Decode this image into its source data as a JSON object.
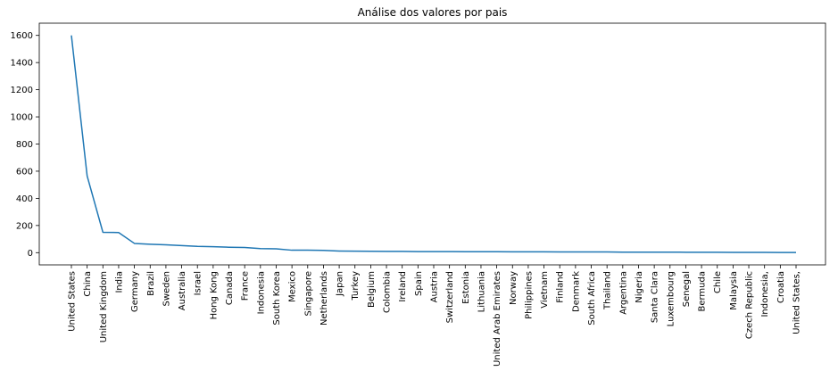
{
  "chart_data": {
    "type": "line",
    "title": "Análise dos valores por pais",
    "xlabel": "",
    "ylabel": "",
    "ylim": [
      -90,
      1690
    ],
    "yticks": [
      0,
      200,
      400,
      600,
      800,
      1000,
      1200,
      1400,
      1600
    ],
    "grid": false,
    "colors": {
      "line": "#1f77b4"
    },
    "categories": [
      "United States",
      "China",
      "United Kingdom",
      "India",
      "Germany",
      "Brazil",
      "Sweden",
      "Australia",
      "Israel",
      "Hong Kong",
      "Canada",
      "France",
      "Indonesia",
      "South Korea",
      "Mexico",
      "Singapore",
      "Netherlands",
      "Japan",
      "Turkey",
      "Belgium",
      "Colombia",
      "Ireland",
      "Spain",
      "Austria",
      "Switzerland",
      "Estonia",
      "Lithuania",
      "United Arab Emirates",
      "Norway",
      "Philippines",
      "Vietnam",
      "Finland",
      "Denmark",
      "South Africa",
      "Thailand",
      "Argentina",
      "Nigeria",
      "Santa Clara",
      "Luxembourg",
      "Senegal",
      "Bermuda",
      "Chile",
      "Malaysia",
      "Czech Republic",
      "Indonesia,",
      "Croatia",
      "United States,"
    ],
    "values": [
      1600,
      565,
      150,
      148,
      68,
      62,
      58,
      52,
      46,
      44,
      40,
      38,
      30,
      28,
      18,
      18,
      17,
      12,
      11,
      10,
      9,
      9,
      8,
      8,
      8,
      7,
      7,
      7,
      6,
      6,
      6,
      5,
      5,
      5,
      5,
      4,
      4,
      4,
      4,
      3,
      3,
      3,
      2,
      2,
      2,
      1,
      1
    ]
  }
}
